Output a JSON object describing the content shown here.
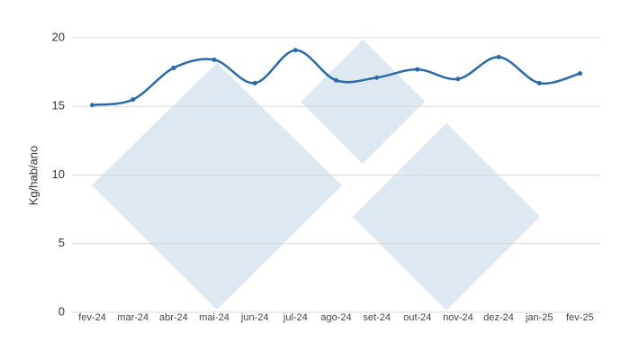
{
  "chart_data": {
    "type": "line",
    "y_label": "Kg/hab/ano",
    "categories": [
      "fev-24",
      "mar-24",
      "abr-24",
      "mai-24",
      "jun-24",
      "jul-24",
      "ago-24",
      "set-24",
      "out-24",
      "nov-24",
      "dez-24",
      "jan-25",
      "fev-25"
    ],
    "values": [
      15.1,
      15.5,
      17.8,
      18.4,
      16.7,
      19.1,
      16.9,
      17.1,
      17.7,
      17.0,
      18.6,
      16.7,
      17.4
    ],
    "color": "#2a6aa8",
    "ylim": [
      0,
      20
    ],
    "yticks": [
      0,
      5,
      10,
      15,
      20
    ],
    "grid": true,
    "smooth": true
  }
}
